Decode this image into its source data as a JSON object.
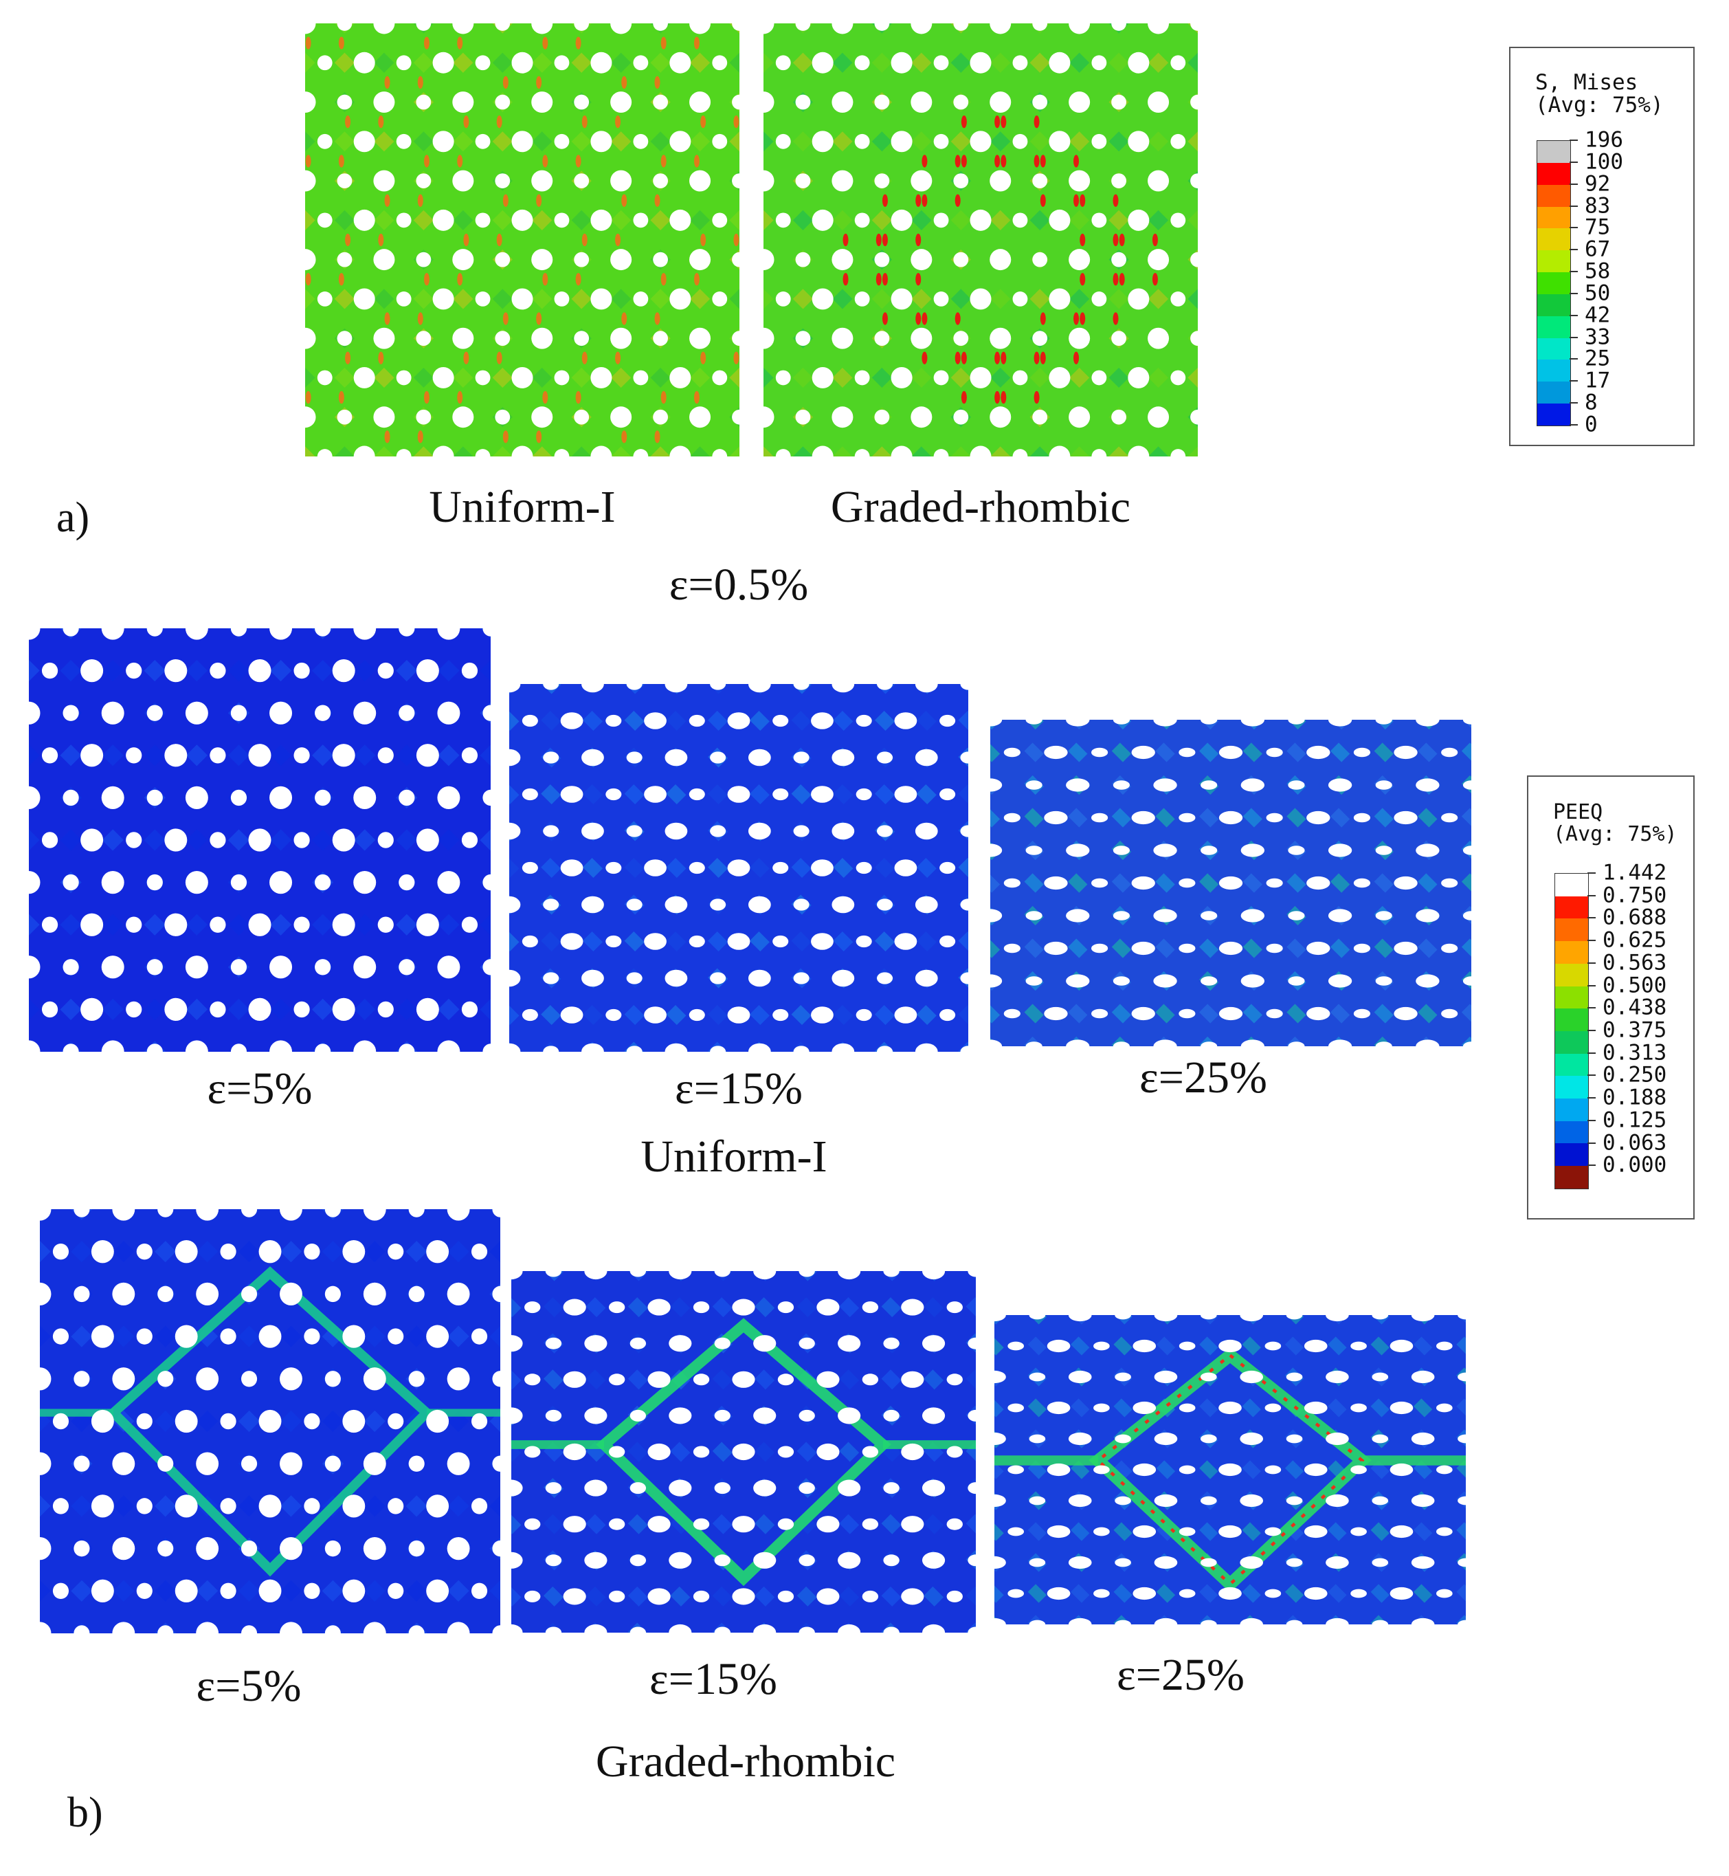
{
  "part_a": {
    "panel_label": "a)",
    "strain_caption": "ε=0.5%",
    "panels": [
      {
        "caption": "Uniform-I",
        "base_color": "#52d61e",
        "hotspot_color": "#e07a1a"
      },
      {
        "caption": "Graded-rhombic",
        "base_color": "#4fd424",
        "hotspot_color": "#e41b12"
      }
    ]
  },
  "part_b": {
    "panel_label": "b)",
    "rows": [
      {
        "group_caption": "Uniform-I",
        "panels": [
          {
            "strain": "ε=5%"
          },
          {
            "strain": "ε=15%"
          },
          {
            "strain": "ε=25%"
          }
        ]
      },
      {
        "group_caption": "Graded-rhombic",
        "panels": [
          {
            "strain": "ε=5%"
          },
          {
            "strain": "ε=15%"
          },
          {
            "strain": "ε=25%"
          }
        ]
      }
    ]
  },
  "legend_mises": {
    "title_line1": "S, Mises",
    "title_line2": "(Avg: 75%)",
    "labels": [
      "196",
      "100",
      "92",
      "83",
      "75",
      "67",
      "58",
      "50",
      "42",
      "33",
      "25",
      "17",
      "8",
      "0"
    ],
    "colors": [
      "#c8c8c8",
      "#ff0000",
      "#ff5a00",
      "#ffa000",
      "#e6d200",
      "#b4ec00",
      "#3fe000",
      "#12c83a",
      "#00e87a",
      "#00e6c8",
      "#00c2e6",
      "#0098dc",
      "#0018e6"
    ]
  },
  "legend_peeq": {
    "title_line1": "PEEQ",
    "title_line2": "(Avg: 75%)",
    "labels": [
      "1.442",
      "0.750",
      "0.688",
      "0.625",
      "0.563",
      "0.500",
      "0.438",
      "0.375",
      "0.313",
      "0.250",
      "0.188",
      "0.125",
      "0.063",
      "0.000"
    ],
    "colors": [
      "#ffffff",
      "#ff1a00",
      "#ff6a00",
      "#ffa500",
      "#d8d800",
      "#8ce000",
      "#2ad22a",
      "#0ec85a",
      "#00e6a0",
      "#00e6e6",
      "#00a8f0",
      "#0064e6",
      "#0012d2",
      "#8b1408"
    ]
  }
}
